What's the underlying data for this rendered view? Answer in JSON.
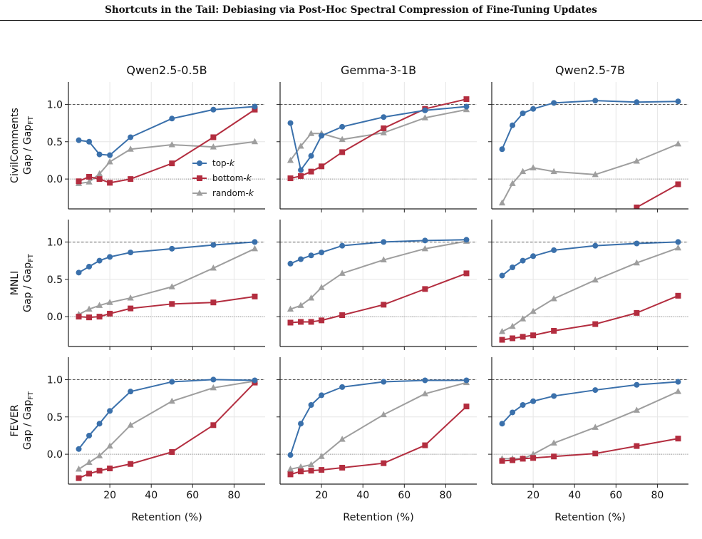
{
  "header": {
    "title": "Shortcuts in the Tail: Debiasing via Post-Hoc Spectral Compression of Fine-Tuning Updates"
  },
  "colors": {
    "top": "#3a70ab",
    "bottom": "#b32d3f",
    "random": "#9e9e9e"
  },
  "chart_data": {
    "type": "line",
    "layout": "grid-3x3",
    "columns": [
      "Qwen2.5-0.5B",
      "Gemma-3-1B",
      "Qwen2.5-7B"
    ],
    "rows": [
      "CivilComments",
      "MNLI",
      "FEVER"
    ],
    "ylabel_line2": "Gap / Gap",
    "ylabel_sub": "FT",
    "xlabel": "Retention (%)",
    "x": [
      5,
      10,
      15,
      20,
      30,
      50,
      70,
      90
    ],
    "xlim": [
      0,
      95
    ],
    "xticks": [
      "20",
      "40",
      "60",
      "80"
    ],
    "ylims": [
      [
        -0.4,
        1.3
      ],
      [
        -0.4,
        1.3
      ],
      [
        -0.4,
        1.3
      ]
    ],
    "yticks": [
      "0.0",
      "0.5",
      "1.0"
    ],
    "reference_lines": [
      0,
      1
    ],
    "legend": {
      "position": "center-right",
      "panel": "CivilComments / Qwen2.5-0.5B",
      "entries": [
        {
          "key": "top",
          "pre": "top-",
          "k": "k"
        },
        {
          "key": "bottom",
          "pre": "bottom-",
          "k": "k"
        },
        {
          "key": "random",
          "pre": "random-",
          "k": "k"
        }
      ]
    },
    "panels": [
      [
        {
          "top": [
            0.52,
            0.5,
            0.33,
            0.32,
            0.56,
            0.81,
            0.93,
            0.97
          ],
          "bottom": [
            -0.03,
            0.03,
            0.0,
            -0.05,
            0.0,
            0.21,
            0.56,
            0.93
          ],
          "random": [
            -0.06,
            -0.04,
            0.07,
            0.23,
            0.4,
            0.46,
            0.43,
            0.5
          ]
        },
        {
          "top": [
            0.75,
            0.12,
            0.31,
            0.58,
            0.7,
            0.83,
            0.92,
            0.97
          ],
          "bottom": [
            0.01,
            0.04,
            0.1,
            0.17,
            0.36,
            0.68,
            0.94,
            1.07
          ],
          "random": [
            0.25,
            0.44,
            0.61,
            0.61,
            0.53,
            0.62,
            0.82,
            0.93
          ]
        },
        {
          "top": [
            0.4,
            0.72,
            0.88,
            0.94,
            1.02,
            1.05,
            1.03,
            1.04
          ],
          "bottom": [
            null,
            null,
            null,
            null,
            null,
            null,
            -0.38,
            -0.07
          ],
          "random": [
            -0.32,
            -0.06,
            0.1,
            0.15,
            0.1,
            0.06,
            0.24,
            0.47
          ]
        }
      ],
      [
        {
          "top": [
            0.59,
            0.67,
            0.75,
            0.8,
            0.86,
            0.91,
            0.96,
            1.0
          ],
          "bottom": [
            0.0,
            -0.01,
            0.0,
            0.04,
            0.11,
            0.17,
            0.19,
            0.27
          ],
          "random": [
            0.03,
            0.1,
            0.15,
            0.19,
            0.25,
            0.4,
            0.65,
            0.91
          ]
        },
        {
          "top": [
            0.71,
            0.77,
            0.82,
            0.86,
            0.95,
            1.0,
            1.02,
            1.03
          ],
          "bottom": [
            -0.08,
            -0.07,
            -0.07,
            -0.05,
            0.02,
            0.16,
            0.37,
            0.58
          ],
          "random": [
            0.1,
            0.15,
            0.25,
            0.39,
            0.58,
            0.76,
            0.91,
            1.01
          ]
        },
        {
          "top": [
            0.55,
            0.66,
            0.75,
            0.81,
            0.89,
            0.95,
            0.98,
            1.0
          ],
          "bottom": [
            -0.31,
            -0.29,
            -0.27,
            -0.25,
            -0.19,
            -0.1,
            0.05,
            0.28
          ],
          "random": [
            -0.2,
            -0.13,
            -0.03,
            0.07,
            0.24,
            0.49,
            0.72,
            0.92
          ]
        }
      ],
      [
        {
          "top": [
            0.07,
            0.25,
            0.41,
            0.58,
            0.84,
            0.97,
            1.0,
            0.99
          ],
          "bottom": [
            -0.32,
            -0.26,
            -0.22,
            -0.19,
            -0.13,
            0.03,
            0.39,
            0.96
          ],
          "random": [
            -0.2,
            -0.11,
            -0.02,
            0.11,
            0.39,
            0.71,
            0.89,
            0.98
          ]
        },
        {
          "top": [
            -0.01,
            0.41,
            0.66,
            0.79,
            0.9,
            0.97,
            0.99,
            0.99
          ],
          "bottom": [
            -0.27,
            -0.23,
            -0.22,
            -0.21,
            -0.18,
            -0.12,
            0.12,
            0.64
          ],
          "random": [
            -0.2,
            -0.17,
            -0.14,
            -0.03,
            0.2,
            0.53,
            0.81,
            0.96
          ]
        },
        {
          "top": [
            0.41,
            0.56,
            0.66,
            0.71,
            0.78,
            0.86,
            0.93,
            0.97
          ],
          "bottom": [
            -0.09,
            -0.08,
            -0.06,
            -0.05,
            -0.03,
            0.01,
            0.11,
            0.21
          ],
          "random": [
            -0.06,
            -0.06,
            -0.06,
            0.0,
            0.15,
            0.36,
            0.59,
            0.84
          ]
        }
      ]
    ]
  }
}
